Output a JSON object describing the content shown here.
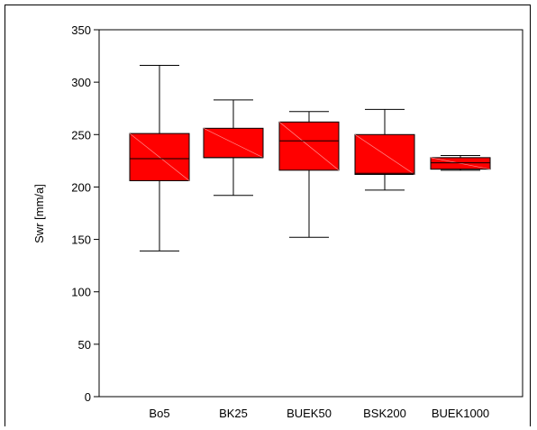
{
  "chart_data": {
    "type": "box",
    "title": "",
    "xlabel": "",
    "ylabel": "Swr [mm/a]",
    "ylim": [
      0,
      350
    ],
    "yticks": [
      0,
      50,
      100,
      150,
      200,
      250,
      300,
      350
    ],
    "grid": false,
    "box_color": "#ff0000",
    "categories": [
      "Bo5",
      "BK25",
      "BUEK50",
      "BSK200",
      "BUEK1000"
    ],
    "boxes": [
      {
        "category": "Bo5",
        "whisker_low": 139,
        "q1": 206,
        "median": 227,
        "q3": 251,
        "whisker_high": 316
      },
      {
        "category": "BK25",
        "whisker_low": 192,
        "q1": 228,
        "median": 228,
        "q3": 256,
        "whisker_high": 283
      },
      {
        "category": "BUEK50",
        "whisker_low": 152,
        "q1": 216,
        "median": 244,
        "q3": 262,
        "whisker_high": 272
      },
      {
        "category": "BSK200",
        "whisker_low": 197,
        "q1": 212,
        "median": 213,
        "q3": 250,
        "whisker_high": 274
      },
      {
        "category": "BUEK1000",
        "whisker_low": 216,
        "q1": 217,
        "median": 223,
        "q3": 228,
        "whisker_high": 230
      }
    ]
  }
}
